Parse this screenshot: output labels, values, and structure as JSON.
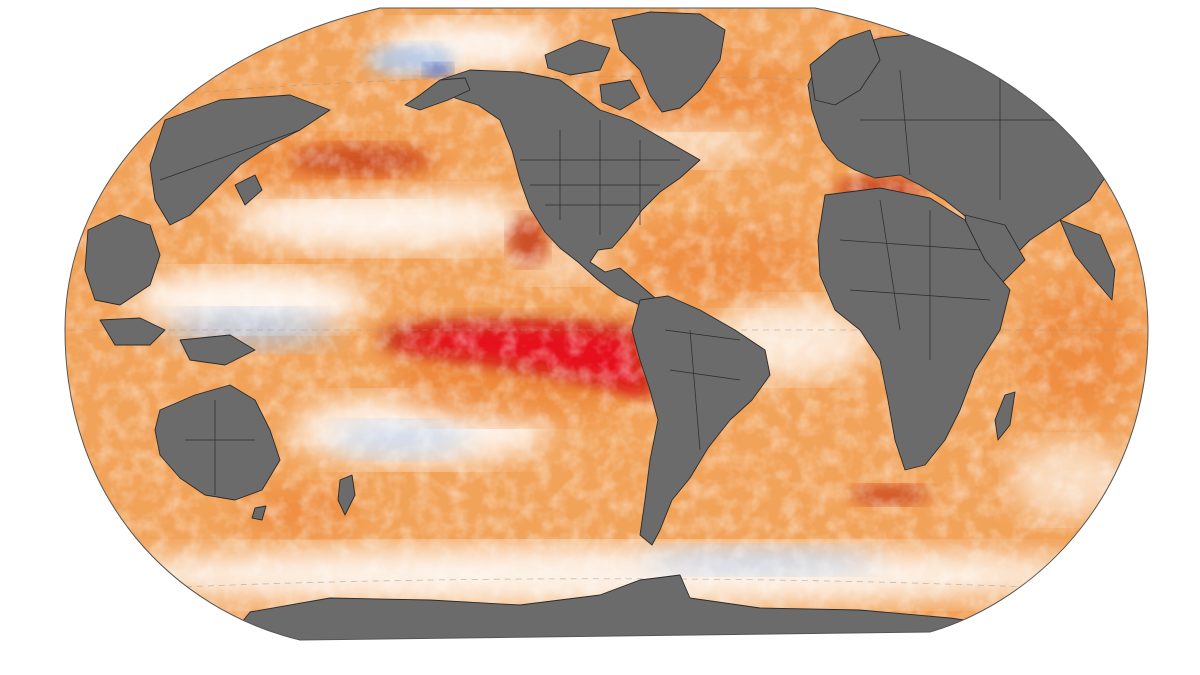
{
  "map": {
    "projection": "winkel-tripel",
    "ocean_base_color": "#f2a35a",
    "land_color": "#6b6b6b",
    "border_color": "#2b2b2b",
    "outline_color": "#555555",
    "graticule_color": "#9a9a9a",
    "anomaly_palette": {
      "strong_cool": "#2b4fbf",
      "cool": "#a9c8f0",
      "neutral": "#ffffff",
      "weak_warm": "#f8c79a",
      "warm": "#ee8a3c",
      "strong_warm": "#c8431a",
      "extreme_warm": "#e8101e"
    },
    "regions": {
      "north_america": {
        "name": "north-america",
        "color": "#6b6b6b"
      },
      "south_america": {
        "name": "south-america",
        "color": "#6b6b6b"
      },
      "greenland": {
        "name": "greenland",
        "color": "#6b6b6b"
      },
      "eurasia": {
        "name": "eurasia",
        "color": "#6b6b6b"
      },
      "africa": {
        "name": "africa",
        "color": "#6b6b6b"
      },
      "australia": {
        "name": "australia",
        "color": "#6b6b6b"
      },
      "antarctica": {
        "name": "antarctica",
        "color": "#6b6b6b"
      }
    }
  }
}
